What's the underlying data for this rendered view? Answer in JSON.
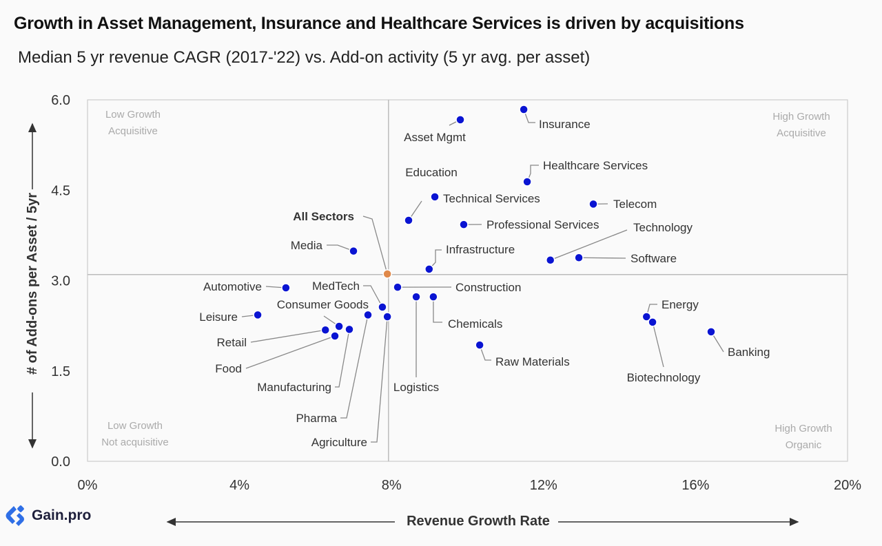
{
  "header": {
    "title": "Growth in Asset Management, Insurance and Healthcare Services is driven by acquisitions",
    "subtitle": "Median 5 yr revenue CAGR (2017-'22) vs. Add-on activity (5 yr avg. per asset)"
  },
  "logo": {
    "text": "Gain.pro",
    "color": "#2f6fe6"
  },
  "chart_data": {
    "type": "scatter",
    "xlabel": "Revenue Growth Rate",
    "ylabel": "# of Add-ons per Asset / 5yr",
    "xlim": [
      0,
      20
    ],
    "ylim": [
      0,
      6
    ],
    "x_ticks": [
      "0%",
      "4%",
      "8%",
      "12%",
      "16%",
      "20%"
    ],
    "y_ticks": [
      "6.0",
      "4.5",
      "3.0",
      "1.5",
      "0.0"
    ],
    "reference_lines": {
      "x": 7.92,
      "y": 3.1
    },
    "point_color": "#0a14d2",
    "highlight_color": "#e0894a",
    "quadrants": [
      {
        "line1": "Low  Growth",
        "line2": "Acquisitive"
      },
      {
        "line1": "High Growth",
        "line2": "Acquisitive"
      },
      {
        "line1": "Low Growth",
        "line2": "Not acquisitive"
      },
      {
        "line1": "High Growth",
        "line2": "Organic"
      }
    ],
    "points": [
      {
        "name": "Asset Mgmt",
        "x": 9.81,
        "y": 5.67
      },
      {
        "name": "Insurance",
        "x": 11.48,
        "y": 5.84
      },
      {
        "name": "Healthcare Services",
        "x": 11.57,
        "y": 4.64
      },
      {
        "name": "Education",
        "x": 8.45,
        "y": 4.0
      },
      {
        "name": "Technical Services",
        "x": 9.14,
        "y": 4.39
      },
      {
        "name": "Telecom",
        "x": 13.31,
        "y": 4.27
      },
      {
        "name": "Professional Services",
        "x": 9.9,
        "y": 3.93
      },
      {
        "name": "Technology",
        "x": 12.18,
        "y": 3.34
      },
      {
        "name": "Software",
        "x": 12.93,
        "y": 3.38
      },
      {
        "name": "Infrastructure",
        "x": 8.99,
        "y": 3.19
      },
      {
        "name": "Media",
        "x": 7.0,
        "y": 3.49
      },
      {
        "name": "All Sectors",
        "x": 7.89,
        "y": 3.11,
        "highlight": true
      },
      {
        "name": "Automotive",
        "x": 5.22,
        "y": 2.88
      },
      {
        "name": "Construction",
        "x": 8.16,
        "y": 2.89
      },
      {
        "name": "MedTech",
        "x": 7.76,
        "y": 2.56
      },
      {
        "name": "Consumer Goods",
        "x": 6.62,
        "y": 2.24
      },
      {
        "name": "Logistics",
        "x": 8.65,
        "y": 2.73
      },
      {
        "name": "Chemicals",
        "x": 9.1,
        "y": 2.73
      },
      {
        "name": "Leisure",
        "x": 4.48,
        "y": 2.43
      },
      {
        "name": "Retail",
        "x": 6.26,
        "y": 2.18
      },
      {
        "name": "Food",
        "x": 6.51,
        "y": 2.08
      },
      {
        "name": "Manufacturing",
        "x": 6.89,
        "y": 2.19
      },
      {
        "name": "Pharma",
        "x": 7.38,
        "y": 2.43
      },
      {
        "name": "Agriculture",
        "x": 7.89,
        "y": 2.4
      },
      {
        "name": "Raw Materials",
        "x": 10.32,
        "y": 1.93
      },
      {
        "name": "Energy",
        "x": 14.71,
        "y": 2.4
      },
      {
        "name": "Biotechnology",
        "x": 14.87,
        "y": 2.31
      },
      {
        "name": "Banking",
        "x": 16.41,
        "y": 2.15
      }
    ]
  }
}
